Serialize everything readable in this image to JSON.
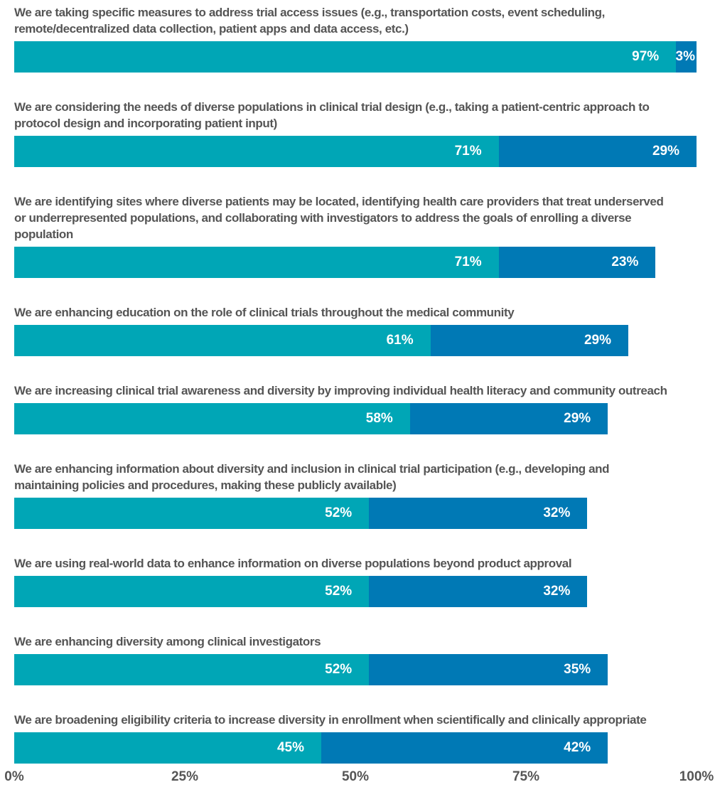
{
  "chart_data": {
    "type": "stacked-bar-horizontal",
    "categories": [
      "We are taking specific measures to address trial access issues (e.g., transportation costs, event scheduling, remote/decentralized data collection, patient apps and data access, etc.)",
      "We are considering the needs of diverse populations in clinical trial design (e.g., taking a patient-centric approach to protocol design and incorporating patient input)",
      "We are identifying sites where diverse patients may be located, identifying health care providers that treat underserved or underrepresented populations, and collaborating with investigators to address the goals of enrolling a diverse population",
      "We are enhancing education on the role of clinical trials throughout the medical community",
      "We are increasing clinical trial awareness and diversity by improving individual health literacy and community outreach",
      "We are enhancing information about diversity and inclusion in clinical trial participation (e.g., developing and maintaining policies and procedures, making these publicly available)",
      "We are using real-world data to enhance information on diverse populations beyond product approval",
      "We are enhancing diversity among clinical investigators",
      "We are broadening eligibility criteria to increase diversity in enrollment when scientifically and clinically appropriate"
    ],
    "series": [
      {
        "color": "#00a6b6",
        "values": [
          97,
          71,
          71,
          61,
          58,
          52,
          52,
          52,
          45
        ],
        "value_labels": [
          "97%",
          "71%",
          "71%",
          "61%",
          "58%",
          "52%",
          "52%",
          "52%",
          "45%"
        ]
      },
      {
        "color": "#0079b5",
        "values": [
          3,
          29,
          23,
          29,
          29,
          32,
          32,
          35,
          42
        ],
        "value_labels": [
          "3%",
          "29%",
          "23%",
          "29%",
          "29%",
          "32%",
          "32%",
          "35%",
          "42%"
        ]
      }
    ],
    "xlim": [
      0,
      100
    ],
    "xticks": [
      {
        "value": 0,
        "label": "0%"
      },
      {
        "value": 25,
        "label": "25%"
      },
      {
        "value": 50,
        "label": "50%"
      },
      {
        "value": 75,
        "label": "75%"
      },
      {
        "value": 100,
        "label": "100%"
      }
    ]
  }
}
